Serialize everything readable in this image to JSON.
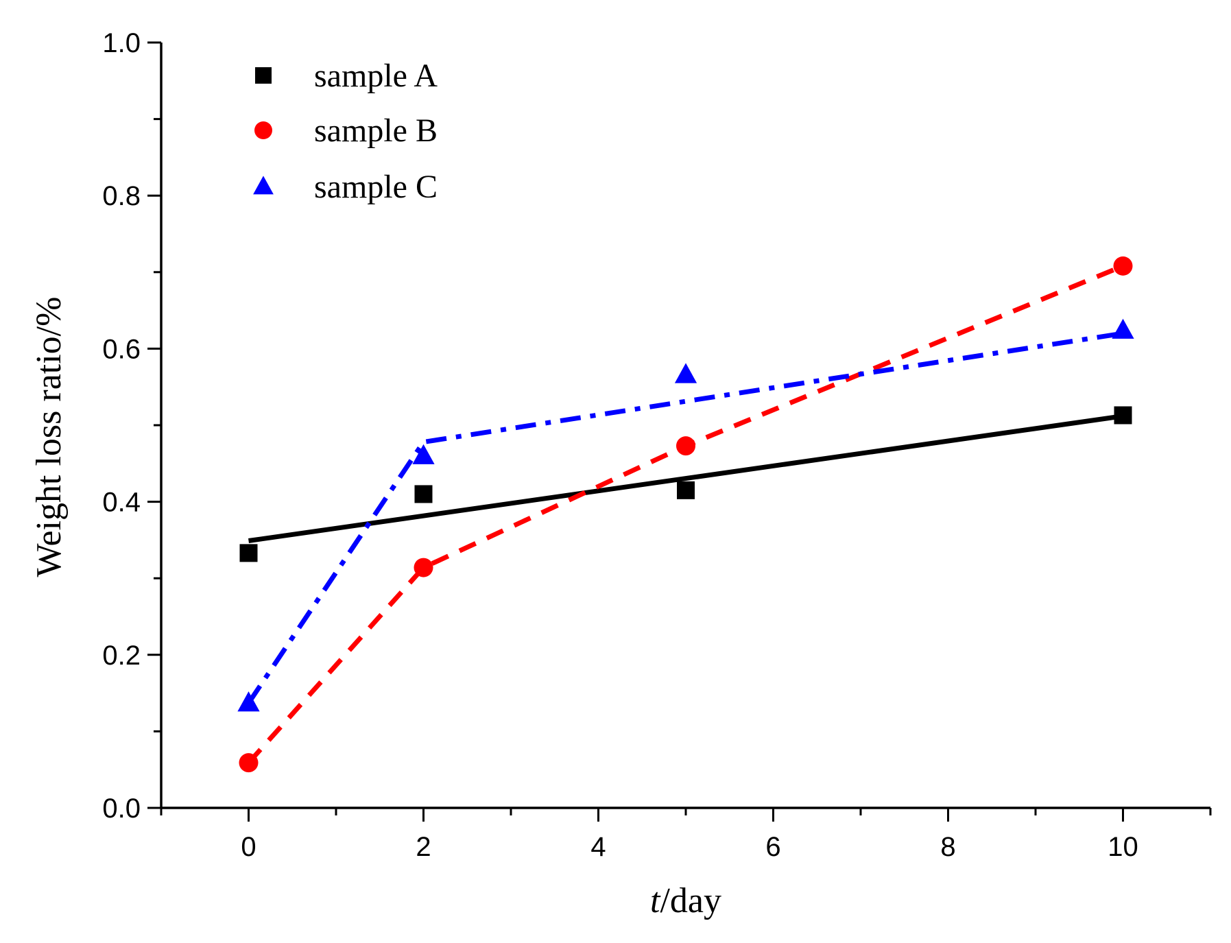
{
  "chart_data": {
    "type": "scatter",
    "title": "",
    "xlabel_italic": "t",
    "xlabel_rest": "/day",
    "ylabel": "Weight loss ratio/%",
    "xlim": [
      -1,
      11
    ],
    "ylim": [
      0.0,
      1.0
    ],
    "x_ticks": [
      0,
      2,
      4,
      6,
      8,
      10
    ],
    "x_tick_labels": [
      "0",
      "2",
      "4",
      "6",
      "8",
      "10"
    ],
    "x_minor_ticks": [
      -1,
      1,
      3,
      5,
      7,
      9,
      11
    ],
    "y_ticks": [
      0.0,
      0.2,
      0.4,
      0.6,
      0.8,
      1.0
    ],
    "y_tick_labels": [
      "0.0",
      "0.2",
      "0.4",
      "0.6",
      "0.8",
      "1.0"
    ],
    "y_minor_ticks": [
      0.1,
      0.3,
      0.5,
      0.7,
      0.9
    ],
    "grid": false,
    "legend_position": "top-left",
    "series": [
      {
        "name": "sample A",
        "color": "#000000",
        "marker": "square",
        "line_style": "solid",
        "x": [
          0,
          2,
          5,
          10
        ],
        "y": [
          0.333,
          0.41,
          0.415,
          0.513
        ],
        "fit_line": {
          "x": [
            0,
            10
          ],
          "y": [
            0.349,
            0.512
          ]
        }
      },
      {
        "name": "sample B",
        "color": "#ff0000",
        "marker": "circle",
        "line_style": "dashed",
        "x": [
          0,
          2,
          5,
          10
        ],
        "y": [
          0.059,
          0.314,
          0.473,
          0.708
        ],
        "fit_line": {
          "x": [
            0,
            2,
            5,
            10
          ],
          "y": [
            0.059,
            0.314,
            0.473,
            0.708
          ]
        }
      },
      {
        "name": "sample C",
        "color": "#0000ff",
        "marker": "triangle",
        "line_style": "dash-dot",
        "x": [
          0,
          2,
          5,
          10
        ],
        "y": [
          0.137,
          0.46,
          0.566,
          0.624
        ],
        "fit_line": {
          "x": [
            0,
            2,
            10
          ],
          "y": [
            0.137,
            0.478,
            0.62
          ]
        }
      }
    ]
  }
}
